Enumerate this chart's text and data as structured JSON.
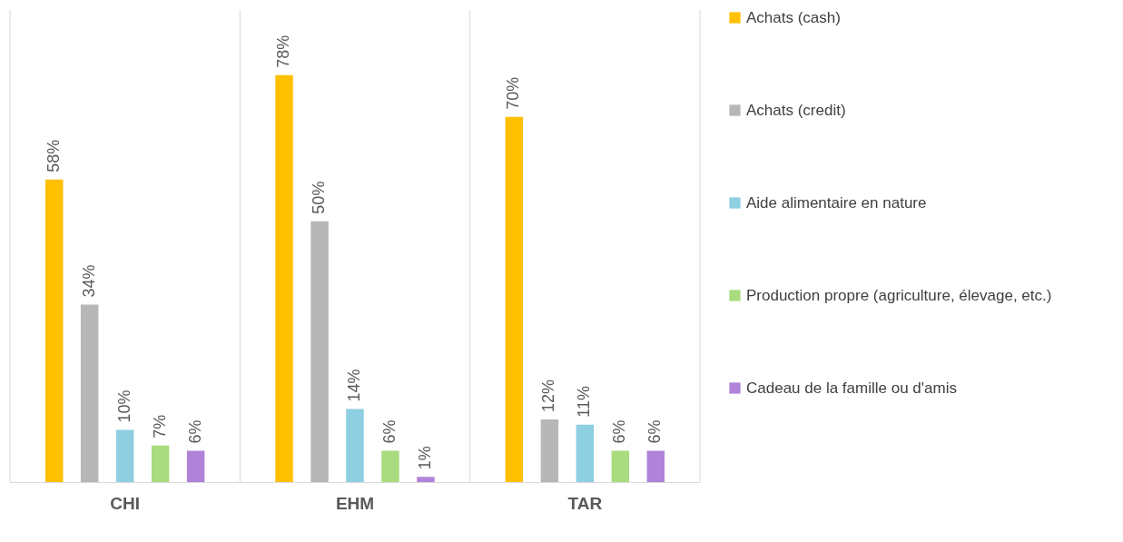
{
  "chart_data": {
    "type": "bar",
    "categories": [
      "CHI",
      "EHM",
      "TAR"
    ],
    "series": [
      {
        "name": "Achats (cash)",
        "color": "#ffc000",
        "values": [
          58,
          78,
          70
        ],
        "value_labels": [
          "58%",
          "78%",
          "70%"
        ]
      },
      {
        "name": "Achats (credit)",
        "color": "#b7b7b7",
        "values": [
          34,
          50,
          12
        ],
        "value_labels": [
          "34%",
          "50%",
          "12%"
        ]
      },
      {
        "name": "Aide alimentaire en nature",
        "color": "#8ecfe2",
        "values": [
          10,
          14,
          11
        ],
        "value_labels": [
          "10%",
          "14%",
          "11%"
        ]
      },
      {
        "name": "Production propre (agriculture, élevage, etc.)",
        "color": "#a9dc7e",
        "values": [
          7,
          6,
          6
        ],
        "value_labels": [
          "7%",
          "6%",
          "6%"
        ]
      },
      {
        "name": "Cadeau de la famille ou d'amis",
        "color": "#b083d9",
        "values": [
          6,
          1,
          6
        ],
        "value_labels": [
          "6%",
          "1%",
          "6%"
        ]
      }
    ],
    "legend": "right",
    "grid": "x"
  }
}
